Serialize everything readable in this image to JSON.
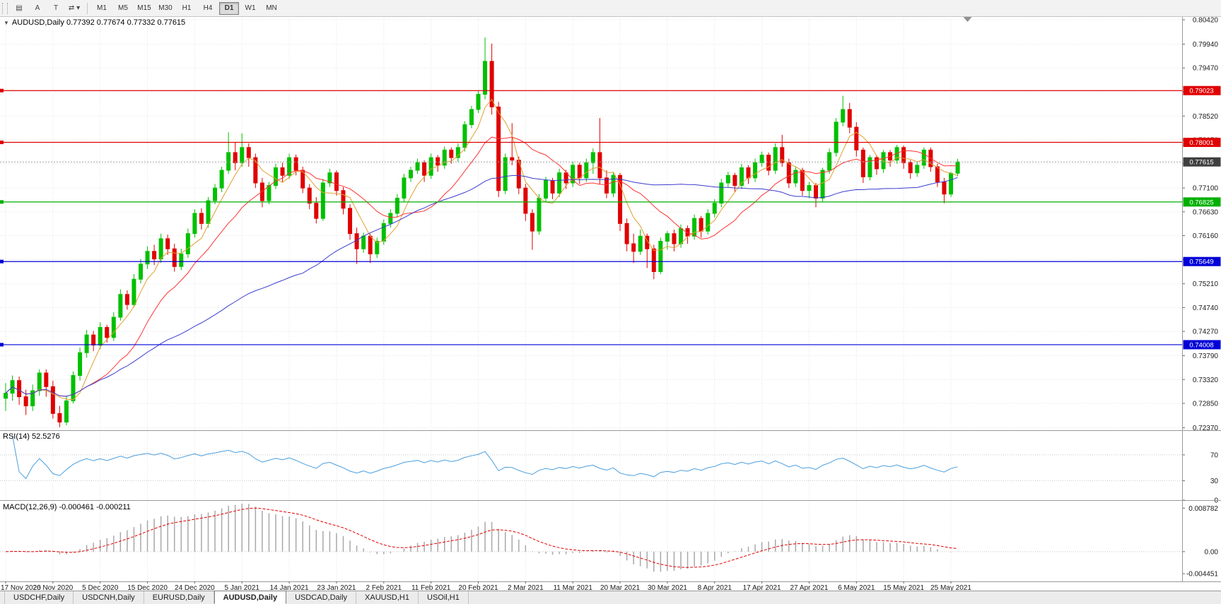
{
  "toolbar": {
    "icon_buttons": [
      {
        "name": "chart-list-icon",
        "glyph": "▤"
      },
      {
        "name": "text-label-icon",
        "glyph": "A"
      },
      {
        "name": "template-icon",
        "glyph": "T"
      },
      {
        "name": "cycle-dropdown-icon",
        "glyph": "⇄ ▾"
      }
    ],
    "timeframes": [
      "M1",
      "M5",
      "M15",
      "M30",
      "H1",
      "H4",
      "D1",
      "W1",
      "MN"
    ],
    "active_timeframe": "D1"
  },
  "chart": {
    "collapse_glyph": "▼",
    "symbol_title": "AUDUSD,Daily",
    "ohlc_display": "0.77392 0.77674 0.77332 0.77615"
  },
  "chart_data": {
    "type": "candlestick",
    "symbol": "AUDUSD",
    "period": "Daily",
    "label_step": 7,
    "x_axis_labels": [
      "17 Nov 2020",
      "26 Nov 2020",
      "5 Dec 2020",
      "15 Dec 2020",
      "24 Dec 2020",
      "5 Jan 2021",
      "14 Jan 2021",
      "23 Jan 2021",
      "2 Feb 2021",
      "11 Feb 2021",
      "20 Feb 2021",
      "2 Mar 2021",
      "11 Mar 2021",
      "20 Mar 2021",
      "30 Mar 2021",
      "8 Apr 2021",
      "17 Apr 2021",
      "27 Apr 2021",
      "6 May 2021",
      "15 May 2021",
      "25 May 2021"
    ],
    "price_axis_ticks": [
      "0.80420",
      "0.79940",
      "0.79470",
      "0.79000",
      "0.78520",
      "0.78050",
      "0.77580",
      "0.77100",
      "0.76630",
      "0.76160",
      "0.75690",
      "0.75210",
      "0.74740",
      "0.74270",
      "0.73790",
      "0.73320",
      "0.72850",
      "0.72370"
    ],
    "price_range": [
      0.7232,
      0.8049
    ],
    "colors": {
      "up": "#00c000",
      "down": "#e00000",
      "grid": "#e3e3e3",
      "background": "#ffffff",
      "pane_border": "#9a9a9a"
    },
    "moving_averages": [
      {
        "name": "fast",
        "period": 5,
        "color": "#e0a030"
      },
      {
        "name": "medium",
        "period": 13,
        "color": "#ff3333"
      },
      {
        "name": "slow",
        "period": 45,
        "color": "#3b3bd0"
      }
    ],
    "horizontal_levels": [
      {
        "price": 0.79023,
        "label": "0.79023",
        "color": "#e00000"
      },
      {
        "price": 0.78001,
        "label": "0.78001",
        "color": "#e00000"
      },
      {
        "price": 0.76825,
        "label": "0.76825",
        "color": "#00b000"
      },
      {
        "price": 0.75649,
        "label": "0.75649",
        "color": "#0000d8"
      },
      {
        "price": 0.74008,
        "label": "0.74008",
        "color": "#0000d8"
      }
    ],
    "current_price": {
      "price": 0.77615,
      "label": "0.77615",
      "tag_color": "#3f3f3f",
      "line_color": "#a0a0a0"
    },
    "indicators": [
      {
        "name": "RSI",
        "label": "RSI(14) 52.5276",
        "period": 14,
        "value": "52.5276",
        "axis_ticks": [
          70,
          30,
          0
        ],
        "scale_max": 107,
        "scale_min": 0,
        "line_color": "#4a9ede"
      },
      {
        "name": "MACD",
        "label": "MACD(12,26,9) -0.000461 -0.000211",
        "fast": 12,
        "slow": 26,
        "signal": 9,
        "values": [
          "-0.000461",
          "-0.000211"
        ],
        "axis_ticks": [
          "0.008782",
          "0.00",
          "-0.004451"
        ],
        "scale_max": 0.0101,
        "scale_min": -0.006,
        "histogram_color": "#a8a8a8",
        "signal_color": "#e00000"
      }
    ],
    "candles_ohlc": [
      [
        0.7295,
        0.7325,
        0.727,
        0.7305
      ],
      [
        0.7305,
        0.734,
        0.729,
        0.733
      ],
      [
        0.733,
        0.7338,
        0.7282,
        0.7298
      ],
      [
        0.7298,
        0.7312,
        0.7262,
        0.728
      ],
      [
        0.728,
        0.7322,
        0.727,
        0.731
      ],
      [
        0.731,
        0.7352,
        0.73,
        0.7345
      ],
      [
        0.7345,
        0.7352,
        0.7298,
        0.7318
      ],
      [
        0.7318,
        0.733,
        0.7255,
        0.7265
      ],
      [
        0.7265,
        0.728,
        0.7238,
        0.7248
      ],
      [
        0.7248,
        0.73,
        0.7242,
        0.729
      ],
      [
        0.729,
        0.7348,
        0.7285,
        0.734
      ],
      [
        0.734,
        0.7395,
        0.733,
        0.7385
      ],
      [
        0.7385,
        0.743,
        0.7375,
        0.742
      ],
      [
        0.742,
        0.7428,
        0.7388,
        0.74
      ],
      [
        0.74,
        0.7445,
        0.7392,
        0.7435
      ],
      [
        0.7435,
        0.744,
        0.7405,
        0.7415
      ],
      [
        0.7415,
        0.7465,
        0.7408,
        0.7455
      ],
      [
        0.7455,
        0.751,
        0.7448,
        0.75
      ],
      [
        0.75,
        0.7508,
        0.747,
        0.748
      ],
      [
        0.748,
        0.754,
        0.7475,
        0.753
      ],
      [
        0.753,
        0.757,
        0.7522,
        0.756
      ],
      [
        0.756,
        0.7595,
        0.755,
        0.7585
      ],
      [
        0.7585,
        0.7598,
        0.7558,
        0.757
      ],
      [
        0.757,
        0.762,
        0.7562,
        0.761
      ],
      [
        0.761,
        0.7618,
        0.7578,
        0.759
      ],
      [
        0.759,
        0.76,
        0.7545,
        0.7555
      ],
      [
        0.7555,
        0.759,
        0.7548,
        0.758
      ],
      [
        0.758,
        0.763,
        0.7572,
        0.762
      ],
      [
        0.762,
        0.7668,
        0.7612,
        0.766
      ],
      [
        0.766,
        0.767,
        0.7628,
        0.764
      ],
      [
        0.764,
        0.7692,
        0.7632,
        0.7685
      ],
      [
        0.7685,
        0.7718,
        0.7678,
        0.771
      ],
      [
        0.771,
        0.7752,
        0.7702,
        0.7745
      ],
      [
        0.7745,
        0.782,
        0.7738,
        0.778
      ],
      [
        0.778,
        0.78,
        0.7745,
        0.776
      ],
      [
        0.776,
        0.7818,
        0.7752,
        0.779
      ],
      [
        0.779,
        0.7798,
        0.7752,
        0.777
      ],
      [
        0.777,
        0.7778,
        0.771,
        0.772
      ],
      [
        0.772,
        0.773,
        0.7672,
        0.7685
      ],
      [
        0.7685,
        0.7722,
        0.7678,
        0.7715
      ],
      [
        0.7715,
        0.7758,
        0.7708,
        0.775
      ],
      [
        0.775,
        0.776,
        0.7722,
        0.7735
      ],
      [
        0.7735,
        0.7778,
        0.7728,
        0.777
      ],
      [
        0.777,
        0.7776,
        0.7735,
        0.7745
      ],
      [
        0.7745,
        0.7752,
        0.77,
        0.771
      ],
      [
        0.771,
        0.7718,
        0.7668,
        0.768
      ],
      [
        0.768,
        0.7692,
        0.764,
        0.765
      ],
      [
        0.765,
        0.7728,
        0.7645,
        0.772
      ],
      [
        0.772,
        0.7748,
        0.7712,
        0.774
      ],
      [
        0.774,
        0.7745,
        0.7695,
        0.7705
      ],
      [
        0.7705,
        0.7712,
        0.7658,
        0.767
      ],
      [
        0.767,
        0.7678,
        0.7608,
        0.762
      ],
      [
        0.762,
        0.7632,
        0.756,
        0.759
      ],
      [
        0.759,
        0.7622,
        0.7582,
        0.7615
      ],
      [
        0.7615,
        0.762,
        0.7562,
        0.758
      ],
      [
        0.758,
        0.7612,
        0.7572,
        0.7605
      ],
      [
        0.7605,
        0.7648,
        0.7598,
        0.764
      ],
      [
        0.764,
        0.7668,
        0.7632,
        0.766
      ],
      [
        0.766,
        0.7698,
        0.7652,
        0.769
      ],
      [
        0.769,
        0.7738,
        0.7682,
        0.773
      ],
      [
        0.773,
        0.7752,
        0.7722,
        0.7745
      ],
      [
        0.7745,
        0.7768,
        0.7738,
        0.776
      ],
      [
        0.776,
        0.7765,
        0.7722,
        0.7735
      ],
      [
        0.7735,
        0.7778,
        0.7728,
        0.777
      ],
      [
        0.777,
        0.7775,
        0.7742,
        0.7755
      ],
      [
        0.7755,
        0.7792,
        0.7748,
        0.7785
      ],
      [
        0.7785,
        0.779,
        0.7758,
        0.777
      ],
      [
        0.777,
        0.7798,
        0.7762,
        0.779
      ],
      [
        0.779,
        0.7842,
        0.7782,
        0.7835
      ],
      [
        0.7835,
        0.7872,
        0.7828,
        0.7865
      ],
      [
        0.7865,
        0.7902,
        0.7858,
        0.7895
      ],
      [
        0.7895,
        0.8007,
        0.7885,
        0.796
      ],
      [
        0.796,
        0.7995,
        0.7855,
        0.787
      ],
      [
        0.787,
        0.788,
        0.7692,
        0.7705
      ],
      [
        0.7705,
        0.7778,
        0.7698,
        0.777
      ],
      [
        0.777,
        0.7838,
        0.7755,
        0.7765
      ],
      [
        0.7765,
        0.7772,
        0.7698,
        0.771
      ],
      [
        0.771,
        0.7718,
        0.7645,
        0.766
      ],
      [
        0.766,
        0.7668,
        0.7588,
        0.7625
      ],
      [
        0.7625,
        0.7698,
        0.7618,
        0.769
      ],
      [
        0.769,
        0.7732,
        0.7682,
        0.7725
      ],
      [
        0.7725,
        0.773,
        0.7688,
        0.77
      ],
      [
        0.77,
        0.7748,
        0.7692,
        0.774
      ],
      [
        0.774,
        0.7746,
        0.7708,
        0.772
      ],
      [
        0.772,
        0.7762,
        0.7712,
        0.7755
      ],
      [
        0.7755,
        0.776,
        0.7718,
        0.773
      ],
      [
        0.773,
        0.7768,
        0.7722,
        0.776
      ],
      [
        0.776,
        0.7788,
        0.7738,
        0.778
      ],
      [
        0.778,
        0.7848,
        0.7718,
        0.773
      ],
      [
        0.773,
        0.7745,
        0.769,
        0.77
      ],
      [
        0.77,
        0.7742,
        0.7692,
        0.7735
      ],
      [
        0.7735,
        0.774,
        0.7625,
        0.764
      ],
      [
        0.764,
        0.765,
        0.7585,
        0.76
      ],
      [
        0.76,
        0.762,
        0.7562,
        0.7585
      ],
      [
        0.7585,
        0.7628,
        0.7578,
        0.7615
      ],
      [
        0.7615,
        0.762,
        0.7552,
        0.759
      ],
      [
        0.759,
        0.7598,
        0.753,
        0.7545
      ],
      [
        0.7545,
        0.7612,
        0.754,
        0.7605
      ],
      [
        0.7605,
        0.7625,
        0.7588,
        0.762
      ],
      [
        0.762,
        0.7628,
        0.7585,
        0.76
      ],
      [
        0.76,
        0.7638,
        0.7592,
        0.763
      ],
      [
        0.763,
        0.7636,
        0.76,
        0.7615
      ],
      [
        0.7615,
        0.7658,
        0.7608,
        0.765
      ],
      [
        0.765,
        0.7655,
        0.7612,
        0.7625
      ],
      [
        0.7625,
        0.7668,
        0.7618,
        0.766
      ],
      [
        0.766,
        0.7688,
        0.7652,
        0.768
      ],
      [
        0.768,
        0.7728,
        0.7672,
        0.772
      ],
      [
        0.772,
        0.7742,
        0.7712,
        0.7735
      ],
      [
        0.7735,
        0.774,
        0.7702,
        0.7715
      ],
      [
        0.7715,
        0.7758,
        0.7708,
        0.775
      ],
      [
        0.775,
        0.7755,
        0.7718,
        0.773
      ],
      [
        0.773,
        0.7768,
        0.7722,
        0.776
      ],
      [
        0.776,
        0.7782,
        0.7752,
        0.7775
      ],
      [
        0.7775,
        0.778,
        0.7735,
        0.7745
      ],
      [
        0.7745,
        0.7798,
        0.7738,
        0.779
      ],
      [
        0.779,
        0.7815,
        0.7752,
        0.776
      ],
      [
        0.776,
        0.7768,
        0.771,
        0.772
      ],
      [
        0.772,
        0.7752,
        0.7712,
        0.7745
      ],
      [
        0.7745,
        0.775,
        0.7695,
        0.7705
      ],
      [
        0.7705,
        0.7722,
        0.769,
        0.7715
      ],
      [
        0.7715,
        0.772,
        0.7672,
        0.769
      ],
      [
        0.769,
        0.775,
        0.7682,
        0.7745
      ],
      [
        0.7745,
        0.7788,
        0.7738,
        0.778
      ],
      [
        0.778,
        0.7848,
        0.7772,
        0.784
      ],
      [
        0.784,
        0.7892,
        0.7832,
        0.7865
      ],
      [
        0.7865,
        0.7878,
        0.7818,
        0.783
      ],
      [
        0.783,
        0.784,
        0.7772,
        0.7785
      ],
      [
        0.7785,
        0.779,
        0.772,
        0.7732
      ],
      [
        0.7732,
        0.7775,
        0.7725,
        0.777
      ],
      [
        0.777,
        0.7775,
        0.7736,
        0.7748
      ],
      [
        0.7748,
        0.7785,
        0.774,
        0.778
      ],
      [
        0.778,
        0.7785,
        0.7752,
        0.7765
      ],
      [
        0.7765,
        0.7795,
        0.7758,
        0.779
      ],
      [
        0.779,
        0.7794,
        0.7748,
        0.776
      ],
      [
        0.776,
        0.7765,
        0.7728,
        0.774
      ],
      [
        0.774,
        0.7762,
        0.7732,
        0.7755
      ],
      [
        0.7755,
        0.779,
        0.7748,
        0.7785
      ],
      [
        0.7785,
        0.779,
        0.7742,
        0.7752
      ],
      [
        0.7752,
        0.7758,
        0.7712,
        0.7722
      ],
      [
        0.7722,
        0.773,
        0.768,
        0.7698
      ],
      [
        0.7698,
        0.7742,
        0.7692,
        0.7739
      ],
      [
        0.77392,
        0.77674,
        0.77332,
        0.77615
      ]
    ]
  },
  "tabs": {
    "items": [
      "USDCHF,Daily",
      "USDCNH,Daily",
      "EURUSD,Daily",
      "AUDUSD,Daily",
      "USDCAD,Daily",
      "XAUUSD,H1",
      "USOil,H1"
    ],
    "active": "AUDUSD,Daily"
  }
}
